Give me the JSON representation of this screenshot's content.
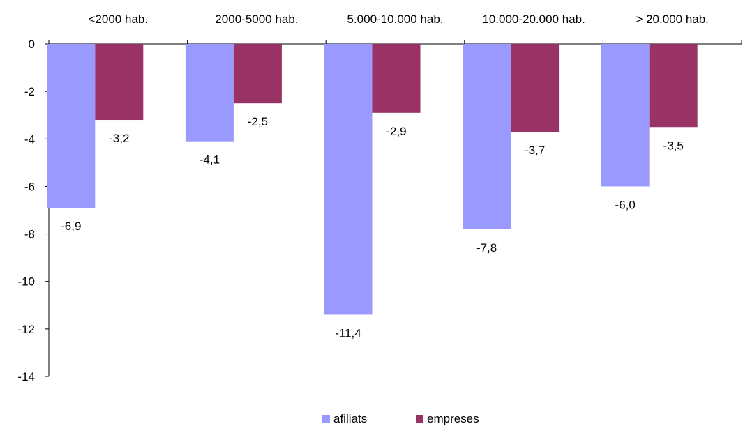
{
  "chart_data": {
    "type": "bar",
    "categories": [
      "<2000 hab.",
      "2000-5000 hab.",
      "5.000-10.000 hab.",
      "10.000-20.000 hab.",
      "> 20.000 hab."
    ],
    "series": [
      {
        "name": "afiliats",
        "color": "#9999ff",
        "values": [
          -6.9,
          -4.1,
          -11.4,
          -7.8,
          -6.0
        ],
        "labels": [
          "-6,9",
          "-4,1",
          "-11,4",
          "-7,8",
          "-6,0"
        ]
      },
      {
        "name": "empreses",
        "color": "#993366",
        "values": [
          -3.2,
          -2.5,
          -2.9,
          -3.7,
          -3.5
        ],
        "labels": [
          "-3,2",
          "-2,5",
          "-2,9",
          "-3,7",
          "-3,5"
        ]
      }
    ],
    "ylim": [
      -14,
      0
    ],
    "yticks": [
      0,
      -2,
      -4,
      -6,
      -8,
      -10,
      -12,
      -14
    ],
    "ytick_labels": [
      "0",
      "-2",
      "-4",
      "-6",
      "-8",
      "-10",
      "-12",
      "-14"
    ],
    "category_axis_position": "top",
    "grid": false,
    "legend_position": "bottom-center"
  }
}
